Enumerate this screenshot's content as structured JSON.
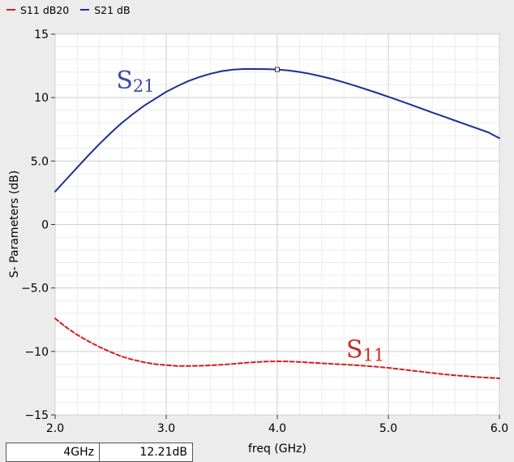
{
  "legend": [
    {
      "name": "S11 dB20",
      "color": "#d02020",
      "style": "dashed"
    },
    {
      "name": "S21 dB",
      "color": "#1c2f96",
      "style": "solid"
    }
  ],
  "readout": {
    "x_value": "4GHz",
    "y_value": "12.21dB"
  },
  "chart_data": {
    "type": "line",
    "xlabel": "freq (GHz)",
    "ylabel": "S- Parameters (dB)",
    "xlim": [
      2.0,
      6.0
    ],
    "ylim": [
      -15,
      15
    ],
    "x_ticks": [
      2.0,
      3.0,
      4.0,
      5.0,
      6.0
    ],
    "x_tick_labels": [
      "2.0",
      "3.0",
      "4.0",
      "5.0",
      "6.0"
    ],
    "y_ticks": [
      15,
      10,
      5,
      0,
      -5,
      -10,
      -15
    ],
    "y_tick_labels": [
      "15",
      "10",
      "5.0",
      "0",
      "−5.0",
      "−10",
      "−15"
    ],
    "grid": true,
    "series": [
      {
        "name": "S11 dB20",
        "color": "#d02020",
        "dash": true,
        "x": [
          2.0,
          2.1,
          2.2,
          2.3,
          2.4,
          2.5,
          2.6,
          2.7,
          2.8,
          2.9,
          3.0,
          3.1,
          3.2,
          3.3,
          3.4,
          3.5,
          3.6,
          3.7,
          3.8,
          3.9,
          4.0,
          4.1,
          4.2,
          4.3,
          4.4,
          4.5,
          4.6,
          4.7,
          4.8,
          4.9,
          5.0,
          5.1,
          5.2,
          5.3,
          5.4,
          5.5,
          5.6,
          5.7,
          5.8,
          5.9,
          6.0
        ],
        "y": [
          -7.4,
          -8.1,
          -8.7,
          -9.2,
          -9.65,
          -10.05,
          -10.4,
          -10.65,
          -10.85,
          -11.0,
          -11.08,
          -11.14,
          -11.15,
          -11.13,
          -11.1,
          -11.05,
          -10.98,
          -10.9,
          -10.84,
          -10.8,
          -10.78,
          -10.79,
          -10.83,
          -10.88,
          -10.93,
          -10.98,
          -11.03,
          -11.08,
          -11.14,
          -11.21,
          -11.29,
          -11.39,
          -11.5,
          -11.6,
          -11.7,
          -11.8,
          -11.88,
          -11.95,
          -12.02,
          -12.07,
          -12.12
        ]
      },
      {
        "name": "S21 dB",
        "color": "#1c2f96",
        "dash": false,
        "x": [
          2.0,
          2.1,
          2.2,
          2.3,
          2.4,
          2.5,
          2.6,
          2.7,
          2.8,
          2.9,
          3.0,
          3.1,
          3.2,
          3.3,
          3.4,
          3.5,
          3.6,
          3.7,
          3.8,
          3.9,
          4.0,
          4.1,
          4.2,
          4.3,
          4.4,
          4.5,
          4.6,
          4.7,
          4.8,
          4.9,
          5.0,
          5.1,
          5.2,
          5.3,
          5.4,
          5.5,
          5.6,
          5.7,
          5.8,
          5.9,
          6.0
        ],
        "y": [
          2.6,
          3.55,
          4.5,
          5.45,
          6.35,
          7.2,
          8.0,
          8.7,
          9.35,
          9.9,
          10.45,
          10.9,
          11.3,
          11.62,
          11.88,
          12.08,
          12.2,
          12.25,
          12.25,
          12.24,
          12.21,
          12.14,
          12.02,
          11.86,
          11.67,
          11.45,
          11.2,
          10.93,
          10.65,
          10.36,
          10.06,
          9.76,
          9.45,
          9.13,
          8.81,
          8.5,
          8.19,
          7.88,
          7.57,
          7.26,
          6.8
        ]
      }
    ],
    "annotations": [
      {
        "text": "S",
        "sub": "21",
        "color": "#3c4a9c",
        "x": 2.55,
        "y": 10.7
      },
      {
        "text": "S",
        "sub": "11",
        "color": "#c82a22",
        "x": 4.62,
        "y": -10.5
      }
    ],
    "marker": {
      "x": 4.0,
      "y": 12.21
    }
  }
}
